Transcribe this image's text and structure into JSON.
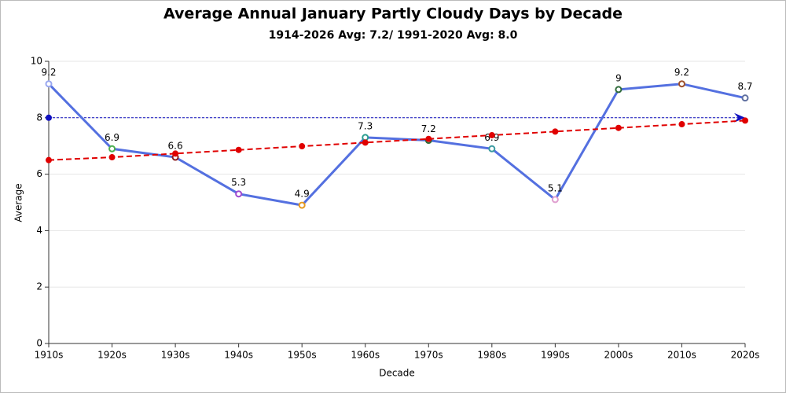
{
  "chart_data": {
    "type": "line",
    "title": "Average Annual January Partly Cloudy Days by Decade",
    "subtitle": "1914-2026 Avg: 7.2/ 1991-2020 Avg: 8.0",
    "x_label": "Decade",
    "y_label": "Average",
    "categories": [
      "1910s",
      "1920s",
      "1930s",
      "1940s",
      "1950s",
      "1960s",
      "1970s",
      "1980s",
      "1990s",
      "2000s",
      "2010s",
      "2020s"
    ],
    "series": [
      {
        "color": "#5470e0",
        "values": [
          9.2,
          6.9,
          6.6,
          5.3,
          4.9,
          7.3,
          7.2,
          6.9,
          5.1,
          9,
          9.2,
          8.7
        ],
        "marker_colors": [
          "#9aa8f0",
          "#4caf50",
          "#8b1a1a",
          "#a04ad0",
          "#e69a20",
          "#2a9d8f",
          "#2f6b3a",
          "#3a9aa0",
          "#e0a0d0",
          "#2f6b3a",
          "#a0522d",
          "#6070a0"
        ],
        "data_labels": true
      },
      {
        "color": "#e00000",
        "dashed": true,
        "values": [
          6.5,
          6.6,
          6.73,
          6.86,
          6.99,
          7.12,
          7.25,
          7.38,
          7.51,
          7.64,
          7.77,
          7.9
        ]
      }
    ],
    "reference_line": {
      "value": 8,
      "color": "#1010c0"
    },
    "ylim": [
      0,
      10
    ],
    "yticks": [
      0,
      2,
      4,
      6,
      8,
      10
    ],
    "grid": true
  }
}
